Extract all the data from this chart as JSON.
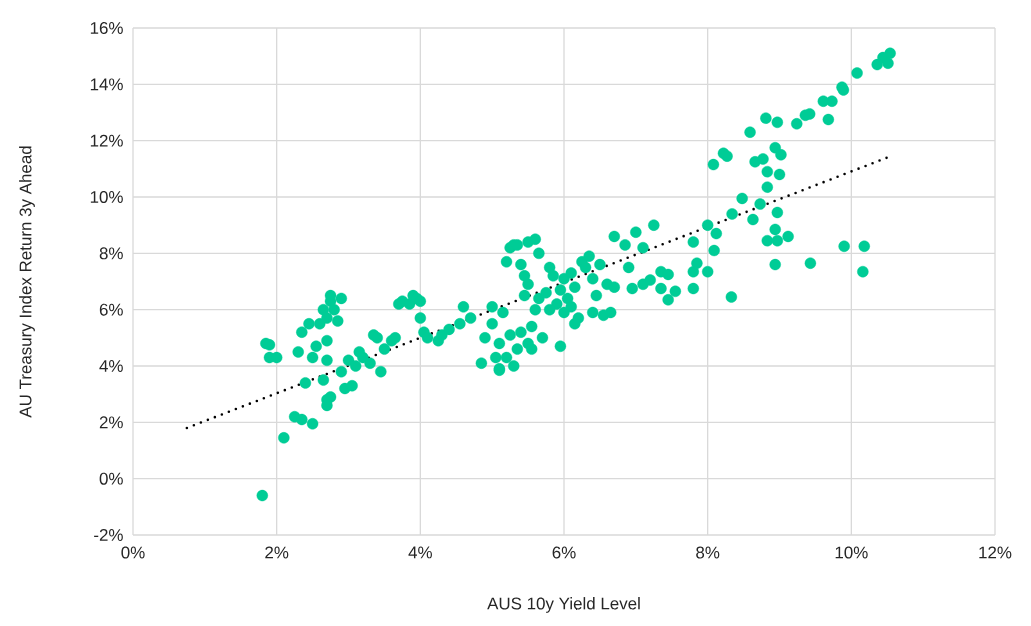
{
  "chart_data": {
    "type": "scatter",
    "xlabel": "AUS 10y Yield Level",
    "ylabel": "AU Treasury Index Return 3y Ahead",
    "xlim": [
      0,
      12
    ],
    "ylim": [
      -2,
      16
    ],
    "xticks": [
      {
        "value": 0,
        "label": "0%"
      },
      {
        "value": 2,
        "label": "2%"
      },
      {
        "value": 4,
        "label": "4%"
      },
      {
        "value": 6,
        "label": "6%"
      },
      {
        "value": 8,
        "label": "8%"
      },
      {
        "value": 10,
        "label": "10%"
      },
      {
        "value": 12,
        "label": "12%"
      }
    ],
    "yticks": [
      {
        "value": -2,
        "label": "-2%"
      },
      {
        "value": 0,
        "label": "0%"
      },
      {
        "value": 2,
        "label": "2%"
      },
      {
        "value": 4,
        "label": "4%"
      },
      {
        "value": 6,
        "label": "6%"
      },
      {
        "value": 8,
        "label": "8%"
      },
      {
        "value": 10,
        "label": "10%"
      },
      {
        "value": 12,
        "label": "12%"
      },
      {
        "value": 14,
        "label": "14%"
      },
      {
        "value": 16,
        "label": "16%"
      }
    ],
    "grid": true,
    "series": [
      {
        "color": "#00cc96",
        "marker": "circle",
        "x": [
          1.8,
          1.85,
          1.9,
          1.9,
          2.0,
          2.1,
          2.25,
          2.35,
          2.3,
          2.35,
          2.4,
          2.45,
          2.5,
          2.5,
          2.55,
          2.6,
          2.65,
          2.7,
          2.7,
          2.75,
          2.7,
          2.7,
          2.7,
          2.65,
          2.75,
          2.75,
          2.8,
          2.85,
          2.9,
          2.9,
          2.95,
          3.0,
          3.05,
          3.1,
          3.2,
          3.15,
          3.3,
          3.35,
          3.4,
          3.45,
          3.5,
          3.6,
          3.65,
          3.7,
          3.75,
          3.85,
          3.9,
          3.95,
          4.0,
          4.0,
          4.05,
          4.1,
          4.25,
          4.3,
          4.4,
          4.55,
          4.6,
          4.7,
          4.85,
          4.9,
          5.0,
          5.05,
          5.1,
          5.1,
          5.15,
          5.2,
          5.2,
          5.25,
          5.3,
          5.35,
          5.4,
          5.45,
          5.5,
          5.6,
          5.65,
          5.5,
          5.45,
          5.4,
          5.35,
          5.3,
          5.5,
          5.55,
          5.6,
          5.65,
          5.7,
          5.75,
          5.8,
          5.85,
          5.9,
          5.95,
          5.95,
          6.0,
          6.0,
          6.05,
          6.1,
          6.15,
          6.2,
          6.25,
          6.3,
          6.35,
          6.4,
          6.45,
          6.5,
          6.55,
          6.6,
          5.0,
          5.25,
          5.8,
          6.1,
          5.55,
          5.1,
          7.25,
          7.0,
          6.7,
          6.85,
          7.1,
          6.9,
          6.7,
          6.95,
          7.1,
          7.2,
          7.35,
          7.45,
          7.35,
          7.55,
          7.45,
          7.8,
          7.8,
          7.85,
          8.0,
          8.0,
          7.8,
          6.4,
          6.65,
          6.15,
          10.54,
          10.44,
          10.36,
          10.51,
          10.08,
          9.87,
          9.89,
          9.73,
          9.61,
          9.68,
          9.42,
          9.36,
          9.24,
          8.97,
          8.81,
          8.59,
          8.22,
          8.27,
          8.08,
          8.66,
          8.77,
          8.94,
          9.02,
          8.83,
          9.0,
          8.83,
          8.48,
          8.73,
          8.97,
          8.34,
          8.63,
          8.12,
          8.94,
          8.83,
          8.97,
          9.12,
          8.09,
          9.9,
          10.18,
          10.16,
          9.43,
          8.94,
          8.33
        ],
        "values": [
          -0.6,
          4.8,
          4.75,
          4.3,
          4.3,
          1.45,
          2.2,
          2.1,
          4.5,
          5.2,
          3.4,
          5.5,
          1.95,
          4.3,
          4.7,
          5.5,
          3.5,
          2.6,
          2.8,
          2.9,
          4.2,
          4.9,
          5.7,
          6.0,
          6.3,
          6.5,
          6.0,
          5.6,
          6.4,
          3.8,
          3.2,
          4.2,
          3.3,
          4.0,
          4.3,
          4.5,
          4.1,
          5.1,
          5.0,
          3.8,
          4.6,
          4.9,
          5.0,
          6.2,
          6.3,
          6.2,
          6.5,
          6.4,
          6.3,
          5.7,
          5.2,
          5.0,
          4.9,
          5.1,
          5.3,
          5.5,
          6.1,
          5.7,
          4.1,
          5.0,
          6.1,
          4.3,
          3.9,
          4.8,
          5.9,
          4.3,
          7.7,
          8.2,
          8.3,
          8.3,
          7.6,
          7.2,
          8.4,
          8.5,
          8.0,
          6.9,
          6.5,
          5.2,
          4.6,
          4.0,
          4.8,
          5.4,
          6.0,
          6.4,
          5.0,
          6.6,
          7.5,
          7.2,
          6.2,
          6.7,
          4.7,
          5.9,
          7.1,
          6.4,
          7.3,
          6.8,
          5.7,
          7.7,
          7.5,
          7.9,
          7.1,
          6.5,
          7.6,
          5.8,
          6.9,
          5.5,
          5.1,
          6.0,
          6.1,
          4.6,
          3.85,
          9.0,
          8.75,
          8.6,
          8.3,
          8.2,
          7.5,
          6.8,
          6.75,
          6.9,
          7.05,
          7.35,
          7.25,
          6.75,
          6.65,
          6.35,
          6.75,
          7.35,
          7.65,
          7.35,
          9.0,
          8.4,
          5.9,
          5.9,
          5.5,
          15.1,
          14.95,
          14.7,
          14.75,
          14.4,
          13.9,
          13.8,
          13.4,
          13.4,
          12.75,
          12.95,
          12.9,
          12.6,
          12.65,
          12.8,
          12.3,
          11.55,
          11.45,
          11.15,
          11.25,
          11.35,
          11.75,
          11.5,
          10.9,
          10.8,
          10.35,
          9.95,
          9.75,
          9.45,
          9.4,
          9.2,
          8.7,
          8.85,
          8.45,
          8.45,
          8.6,
          8.1,
          8.25,
          8.25,
          7.35,
          7.65,
          7.6,
          6.45
        ]
      },
      {
        "type": "line",
        "color": "#000000",
        "line_style": "dotted",
        "marker": "none",
        "x": [
          0.75,
          10.5
        ],
        "values": [
          1.8,
          11.4
        ]
      }
    ]
  }
}
